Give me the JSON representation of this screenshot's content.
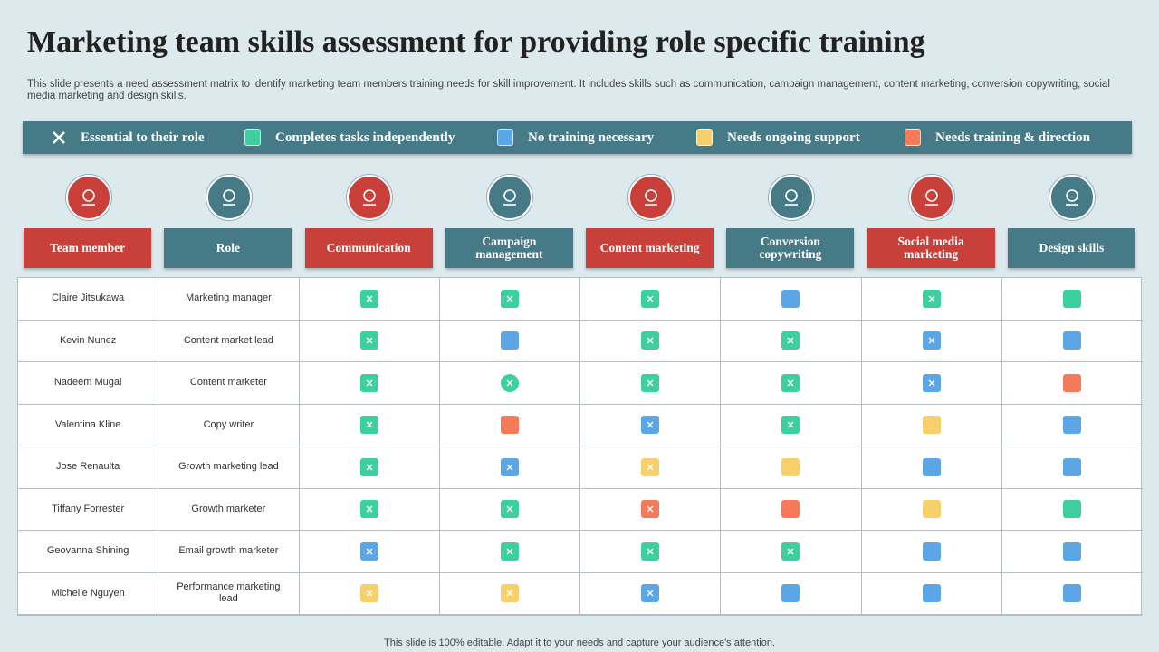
{
  "title": "Marketing team skills assessment for providing role specific training",
  "description": "This slide presents a need assessment matrix to identify marketing team members training needs for skill improvement. It includes skills such as communication, campaign management, content marketing, conversion copywriting, social media marketing and design skills.",
  "legend": [
    {
      "label": "Essential to their role",
      "marker": "x"
    },
    {
      "label": "Completes tasks independently",
      "color": "#3ecf9e"
    },
    {
      "label": "No training necessary",
      "color": "#5aa6e6"
    },
    {
      "label": "Needs ongoing support",
      "color": "#f7cf6b"
    },
    {
      "label": "Needs training & direction",
      "color": "#f47a5a"
    }
  ],
  "columns": [
    {
      "label": "Team member",
      "color": "#c9403a"
    },
    {
      "label": "Role",
      "color": "#467a86"
    },
    {
      "label": "Communication",
      "color": "#c9403a"
    },
    {
      "label": "Campaign management",
      "color": "#467a86"
    },
    {
      "label": "Content marketing",
      "color": "#c9403a"
    },
    {
      "label": "Conversion copywriting",
      "color": "#467a86"
    },
    {
      "label": "Social media marketing",
      "color": "#c9403a"
    },
    {
      "label": "Design skills",
      "color": "#467a86"
    }
  ],
  "rows": [
    {
      "name": "Claire Jitsukawa",
      "role": "Marketing manager",
      "cells": [
        {
          "color": "#3ecf9e",
          "essential": true
        },
        {
          "color": "#3ecf9e",
          "essential": true
        },
        {
          "color": "#3ecf9e",
          "essential": true
        },
        {
          "color": "#5aa6e6",
          "essential": false
        },
        {
          "color": "#3ecf9e",
          "essential": true
        },
        {
          "color": "#3ecf9e",
          "essential": false
        }
      ]
    },
    {
      "name": "Kevin Nunez",
      "role": "Content market lead",
      "cells": [
        {
          "color": "#3ecf9e",
          "essential": true
        },
        {
          "color": "#5aa6e6",
          "essential": false
        },
        {
          "color": "#3ecf9e",
          "essential": true
        },
        {
          "color": "#3ecf9e",
          "essential": true
        },
        {
          "color": "#5aa6e6",
          "essential": true
        },
        {
          "color": "#5aa6e6",
          "essential": false
        }
      ]
    },
    {
      "name": "Nadeem Mugal",
      "role": "Content marketer",
      "cells": [
        {
          "color": "#3ecf9e",
          "essential": true
        },
        {
          "color": "#3ecf9e",
          "essential": true,
          "shape": "circle"
        },
        {
          "color": "#3ecf9e",
          "essential": true
        },
        {
          "color": "#3ecf9e",
          "essential": true
        },
        {
          "color": "#5aa6e6",
          "essential": true
        },
        {
          "color": "#f47a5a",
          "essential": false
        }
      ]
    },
    {
      "name": "Valentina Kline",
      "role": "Copy writer",
      "cells": [
        {
          "color": "#3ecf9e",
          "essential": true
        },
        {
          "color": "#f47a5a",
          "essential": false
        },
        {
          "color": "#5aa6e6",
          "essential": true
        },
        {
          "color": "#3ecf9e",
          "essential": true
        },
        {
          "color": "#f7cf6b",
          "essential": false
        },
        {
          "color": "#5aa6e6",
          "essential": false
        }
      ]
    },
    {
      "name": "Jose Renaulta",
      "role": "Growth marketing lead",
      "cells": [
        {
          "color": "#3ecf9e",
          "essential": true
        },
        {
          "color": "#5aa6e6",
          "essential": true
        },
        {
          "color": "#f7cf6b",
          "essential": true
        },
        {
          "color": "#f7cf6b",
          "essential": false
        },
        {
          "color": "#5aa6e6",
          "essential": false
        },
        {
          "color": "#5aa6e6",
          "essential": false
        }
      ]
    },
    {
      "name": "Tiffany Forrester",
      "role": "Growth marketer",
      "cells": [
        {
          "color": "#3ecf9e",
          "essential": true
        },
        {
          "color": "#3ecf9e",
          "essential": true
        },
        {
          "color": "#f47a5a",
          "essential": true
        },
        {
          "color": "#f47a5a",
          "essential": false
        },
        {
          "color": "#f7cf6b",
          "essential": false
        },
        {
          "color": "#3ecf9e",
          "essential": false
        }
      ]
    },
    {
      "name": "Geovanna Shining",
      "role": "Email  growth marketer",
      "cells": [
        {
          "color": "#5aa6e6",
          "essential": true
        },
        {
          "color": "#3ecf9e",
          "essential": true
        },
        {
          "color": "#3ecf9e",
          "essential": true
        },
        {
          "color": "#3ecf9e",
          "essential": true
        },
        {
          "color": "#5aa6e6",
          "essential": false
        },
        {
          "color": "#5aa6e6",
          "essential": false
        }
      ]
    },
    {
      "name": "Michelle Nguyen",
      "role": "Performance marketing lead",
      "cells": [
        {
          "color": "#f7cf6b",
          "essential": true
        },
        {
          "color": "#f7cf6b",
          "essential": true
        },
        {
          "color": "#5aa6e6",
          "essential": true
        },
        {
          "color": "#5aa6e6",
          "essential": false
        },
        {
          "color": "#5aa6e6",
          "essential": false
        },
        {
          "color": "#5aa6e6",
          "essential": false
        }
      ]
    }
  ],
  "footer": "This slide is 100% editable. Adapt it to your needs and capture your audience's attention."
}
